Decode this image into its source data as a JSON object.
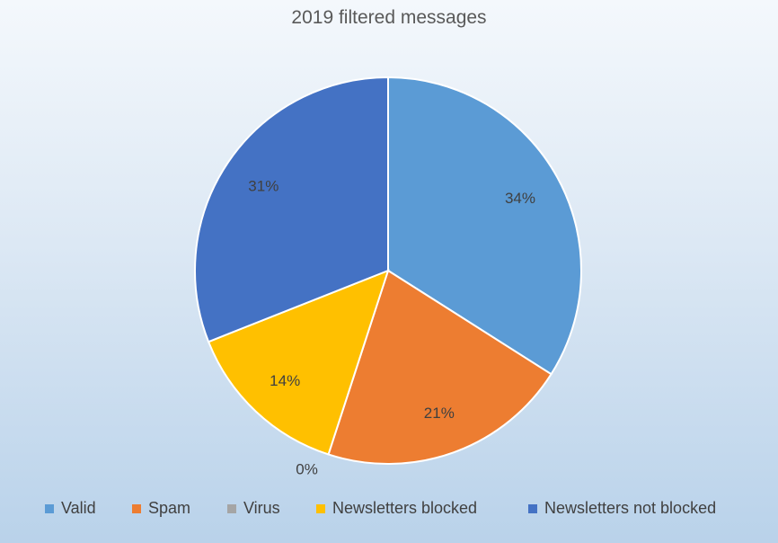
{
  "chart_data": {
    "type": "pie",
    "title": "2019 filtered messages",
    "categories": [
      "Valid",
      "Spam",
      "Virus",
      "Newsletters blocked",
      "Newsletters not blocked"
    ],
    "values": [
      34,
      21,
      0,
      14,
      31
    ],
    "labels": [
      "34%",
      "21%",
      "0%",
      "14%",
      "31%"
    ],
    "colors": [
      "#5B9BD5",
      "#ED7D31",
      "#A5A5A5",
      "#FFC000",
      "#4472C4"
    ],
    "legend_position": "bottom"
  }
}
